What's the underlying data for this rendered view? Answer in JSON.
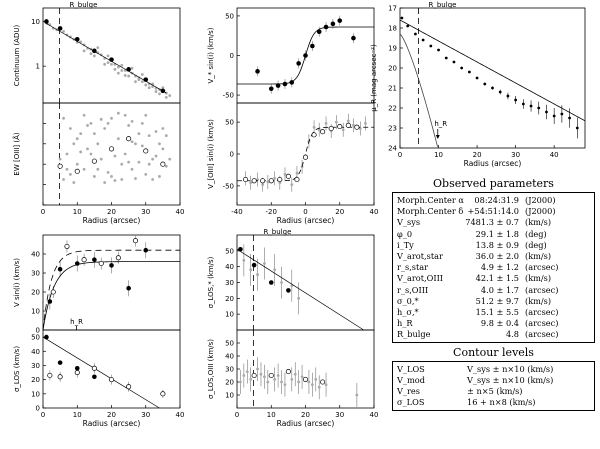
{
  "chart_data": [
    {
      "type": "scatter",
      "ylabel": "Continuum (ADU)",
      "xlim": [
        0,
        40
      ],
      "ylim": [
        0.15,
        20
      ],
      "ylog": true,
      "yticks": [
        1,
        10
      ],
      "annotation": "R_bulge",
      "rbulge": 4.8,
      "points_black": [
        [
          1,
          10
        ],
        [
          5,
          7
        ],
        [
          10,
          4
        ],
        [
          15,
          2.2
        ],
        [
          20,
          1.4
        ],
        [
          25,
          0.85
        ],
        [
          30,
          0.5
        ],
        [
          35,
          0.28
        ]
      ],
      "points_gray": [
        [
          1.2,
          9
        ],
        [
          2,
          8.5
        ],
        [
          3,
          7
        ],
        [
          4,
          6.5
        ],
        [
          6,
          6
        ],
        [
          7,
          5
        ],
        [
          8,
          4.5
        ],
        [
          9,
          4
        ],
        [
          11,
          3.5
        ],
        [
          12,
          3
        ],
        [
          13,
          2.5
        ],
        [
          14,
          2.4
        ],
        [
          16,
          2
        ],
        [
          17,
          1.8
        ],
        [
          18,
          1.5
        ],
        [
          19,
          1.2
        ],
        [
          21,
          1.1
        ],
        [
          22,
          0.95
        ],
        [
          23,
          0.8
        ],
        [
          24,
          0.8
        ],
        [
          26,
          0.7
        ],
        [
          27,
          0.6
        ],
        [
          28,
          0.55
        ],
        [
          29,
          0.45
        ],
        [
          31,
          0.4
        ],
        [
          32,
          0.35
        ],
        [
          33,
          0.32
        ],
        [
          34,
          0.3
        ],
        [
          36,
          0.25
        ],
        [
          37,
          0.22
        ],
        [
          12,
          2.2
        ],
        [
          15,
          1.7
        ],
        [
          18,
          1.1
        ],
        [
          20,
          1.1
        ],
        [
          22,
          0.7
        ],
        [
          25,
          0.6
        ],
        [
          27,
          0.45
        ],
        [
          30,
          0.38
        ],
        [
          33,
          0.27
        ],
        [
          16,
          2.6
        ],
        [
          19,
          1.7
        ],
        [
          23,
          1.05
        ],
        [
          26,
          0.9
        ],
        [
          29,
          0.65
        ],
        [
          32,
          0.4
        ],
        [
          35,
          0.33
        ],
        [
          10,
          3.4
        ],
        [
          14,
          1.9
        ],
        [
          21,
          0.85
        ],
        [
          24,
          0.62
        ],
        [
          28,
          0.5
        ],
        [
          31,
          0.33
        ],
        [
          34,
          0.24
        ],
        [
          36,
          0.2
        ]
      ]
    },
    {
      "type": "scatter",
      "xlabel": "Radius (arcsec)",
      "ylabel": "EW [OIII] (Å)",
      "xlim": [
        0,
        40
      ],
      "ylim": [
        0,
        10
      ],
      "xticks": [
        0,
        10,
        20,
        30,
        40
      ],
      "rbulge": 4.8,
      "points_open": [
        [
          5,
          3.8
        ],
        [
          10,
          3.3
        ],
        [
          15,
          4.3
        ],
        [
          20,
          5.5
        ],
        [
          25,
          6.5
        ],
        [
          30,
          5.3
        ],
        [
          35,
          4
        ]
      ],
      "points_gray": [
        [
          5,
          4.5
        ],
        [
          6,
          2.5
        ],
        [
          7,
          5
        ],
        [
          8,
          3
        ],
        [
          9,
          6
        ],
        [
          10,
          4
        ],
        [
          11,
          7
        ],
        [
          12,
          3.5
        ],
        [
          13,
          5.5
        ],
        [
          14,
          8
        ],
        [
          15,
          2.8
        ],
        [
          16,
          6
        ],
        [
          17,
          4.5
        ],
        [
          18,
          7.5
        ],
        [
          19,
          3.2
        ],
        [
          20,
          8.5
        ],
        [
          21,
          4.8
        ],
        [
          22,
          6.5
        ],
        [
          23,
          2.5
        ],
        [
          24,
          5
        ],
        [
          25,
          7.8
        ],
        [
          26,
          3.5
        ],
        [
          27,
          6
        ],
        [
          28,
          4.2
        ],
        [
          29,
          8
        ],
        [
          30,
          3
        ],
        [
          31,
          6.8
        ],
        [
          32,
          4.5
        ],
        [
          33,
          7.2
        ],
        [
          34,
          2.8
        ],
        [
          35,
          5.5
        ],
        [
          36,
          3.8
        ],
        [
          37,
          4.5
        ],
        [
          8,
          7.5
        ],
        [
          12,
          8.8
        ],
        [
          16,
          3.5
        ],
        [
          20,
          2.8
        ],
        [
          24,
          8.8
        ],
        [
          28,
          7
        ],
        [
          32,
          2.5
        ],
        [
          6,
          8.5
        ],
        [
          10,
          6.5
        ],
        [
          14,
          5
        ],
        [
          18,
          2.2
        ],
        [
          22,
          9
        ],
        [
          26,
          8.2
        ],
        [
          30,
          8.8
        ],
        [
          34,
          6
        ],
        [
          7,
          3.5
        ],
        [
          11,
          5.2
        ],
        [
          15,
          7
        ],
        [
          19,
          8
        ],
        [
          23,
          4
        ],
        [
          27,
          2.6
        ],
        [
          31,
          4
        ],
        [
          35,
          7.5
        ],
        [
          9,
          2.2
        ],
        [
          13,
          7.8
        ],
        [
          17,
          8.4
        ],
        [
          21,
          2.4
        ],
        [
          25,
          4.2
        ],
        [
          29,
          5.8
        ],
        [
          33,
          4.8
        ],
        [
          36,
          6.8
        ],
        [
          26,
          6.2
        ]
      ]
    },
    {
      "type": "line",
      "ylabel": "V_* sin(i) (km/s)",
      "xlim": [
        -40,
        40
      ],
      "ylim": [
        -60,
        60
      ],
      "yticks": [
        -50,
        0,
        50
      ],
      "points": [
        [
          -28,
          -20
        ],
        [
          -20,
          -42
        ],
        [
          -16,
          -38
        ],
        [
          -12,
          -36
        ],
        [
          -8,
          -34
        ],
        [
          -4,
          -10
        ],
        [
          0,
          0
        ],
        [
          4,
          12
        ],
        [
          8,
          30
        ],
        [
          12,
          36
        ],
        [
          16,
          40
        ],
        [
          20,
          44
        ],
        [
          28,
          22
        ]
      ]
    },
    {
      "type": "line",
      "xlabel": "Radius (arcsec)",
      "ylabel": "V_[OIII] sin(i) (km/s)",
      "xlim": [
        -40,
        40
      ],
      "ylim": [
        -80,
        80
      ],
      "xticks": [
        -40,
        -20,
        0,
        20,
        40
      ],
      "yticks": [
        -50,
        0,
        50
      ],
      "points_open": [
        [
          -35,
          -40
        ],
        [
          -30,
          -42
        ],
        [
          -25,
          -42
        ],
        [
          -20,
          -42
        ],
        [
          -15,
          -40
        ],
        [
          -10,
          -35
        ],
        [
          -5,
          -40
        ],
        [
          0,
          -5
        ],
        [
          5,
          30
        ],
        [
          10,
          35
        ],
        [
          15,
          40
        ],
        [
          20,
          43
        ],
        [
          25,
          45
        ],
        [
          30,
          42
        ]
      ],
      "points_gray": [
        [
          -35,
          -38
        ],
        [
          -32,
          -45
        ],
        [
          -28,
          -40
        ],
        [
          -25,
          -48
        ],
        [
          -22,
          -44
        ],
        [
          -18,
          -38
        ],
        [
          -15,
          -45
        ],
        [
          -12,
          -32
        ],
        [
          -8,
          -48
        ],
        [
          -5,
          -30
        ],
        [
          -2,
          -20
        ],
        [
          2,
          20
        ],
        [
          5,
          42
        ],
        [
          8,
          38
        ],
        [
          12,
          48
        ],
        [
          15,
          36
        ],
        [
          18,
          50
        ],
        [
          22,
          38
        ],
        [
          25,
          52
        ],
        [
          28,
          45
        ],
        [
          32,
          40
        ],
        [
          35,
          48
        ]
      ]
    },
    {
      "type": "line",
      "ylabel": "V sin(i) (km/s)",
      "xlim": [
        0,
        40
      ],
      "ylim": [
        0,
        50
      ],
      "yticks": [
        0,
        10,
        20,
        30,
        40
      ],
      "annotation": "h_R",
      "hR": 9.8,
      "points_black": [
        [
          2,
          15
        ],
        [
          5,
          32
        ],
        [
          10,
          35
        ],
        [
          15,
          37
        ],
        [
          20,
          34
        ],
        [
          25,
          22
        ],
        [
          30,
          42
        ]
      ],
      "points_open": [
        [
          3,
          20
        ],
        [
          7,
          44
        ],
        [
          12,
          37
        ],
        [
          17,
          35
        ],
        [
          22,
          38
        ],
        [
          27,
          47
        ]
      ]
    },
    {
      "type": "line",
      "xlabel": "Radius (arcsec)",
      "ylabel": "σ_LOS (km/s)",
      "xlim": [
        0,
        40
      ],
      "ylim": [
        0,
        55
      ],
      "xticks": [
        0,
        10,
        20,
        30,
        40
      ],
      "yticks": [
        0,
        10,
        20,
        30,
        40,
        50
      ],
      "points_black": [
        [
          1,
          50
        ],
        [
          5,
          32
        ],
        [
          10,
          28
        ],
        [
          15,
          22
        ]
      ],
      "points_open": [
        [
          2,
          23
        ],
        [
          5,
          22
        ],
        [
          10,
          25
        ],
        [
          15,
          28
        ],
        [
          20,
          20
        ],
        [
          25,
          15
        ]
      ],
      "points_other": [
        [
          35,
          10
        ]
      ]
    },
    {
      "type": "line",
      "ylabel": "σ_LOS,* (km/s)",
      "xlim": [
        0,
        40
      ],
      "ylim": [
        0,
        60
      ],
      "yticks": [
        10,
        20,
        30,
        40,
        50
      ],
      "annotation": "R_bulge",
      "rbulge": 4.8,
      "points_black": [
        [
          1,
          51
        ],
        [
          5,
          41
        ],
        [
          10,
          30
        ],
        [
          15,
          25
        ]
      ],
      "points_gray": [
        [
          2,
          44
        ],
        [
          4,
          38
        ],
        [
          6,
          35
        ],
        [
          8,
          42
        ],
        [
          11,
          38
        ],
        [
          13,
          30
        ],
        [
          16,
          28
        ],
        [
          18,
          20
        ]
      ]
    },
    {
      "type": "scatter",
      "xlabel": "Radius (arcsec)",
      "ylabel": "σ_LOS,OIII (km/s)",
      "xlim": [
        0,
        40
      ],
      "ylim": [
        0,
        60
      ],
      "xticks": [
        0,
        10,
        20,
        30,
        40
      ],
      "yticks": [
        10,
        20,
        30,
        40,
        50
      ],
      "rbulge": 4.8,
      "points_open": [
        [
          5,
          25
        ],
        [
          10,
          25
        ],
        [
          15,
          28
        ],
        [
          20,
          22
        ],
        [
          25,
          20
        ]
      ],
      "points_gray": [
        [
          1,
          20
        ],
        [
          2,
          25
        ],
        [
          3,
          28
        ],
        [
          4,
          22
        ],
        [
          6,
          30
        ],
        [
          7,
          26
        ],
        [
          8,
          24
        ],
        [
          9,
          20
        ],
        [
          11,
          22
        ],
        [
          12,
          25
        ],
        [
          13,
          20
        ],
        [
          14,
          18
        ],
        [
          16,
          22
        ],
        [
          17,
          26
        ],
        [
          18,
          20
        ],
        [
          19,
          24
        ],
        [
          21,
          20
        ],
        [
          22,
          18
        ],
        [
          23,
          22
        ],
        [
          24,
          16
        ],
        [
          26,
          18
        ],
        [
          35,
          10
        ]
      ]
    },
    {
      "type": "line",
      "xlabel": "Radius (arcsec)",
      "ylabel": "μ_R (mag arcsec⁻²)",
      "xlim": [
        0,
        48
      ],
      "ylim": [
        24,
        17
      ],
      "yticks": [
        17,
        18,
        19,
        20,
        21,
        22,
        23,
        24
      ],
      "xticks": [
        0,
        10,
        20,
        30,
        40
      ],
      "annotation1": "R_bulge",
      "annotation2": "h_R",
      "rbulge": 4.8,
      "hR": 9.8,
      "points": [
        [
          0.5,
          17.5
        ],
        [
          2,
          17.9
        ],
        [
          4,
          18.3
        ],
        [
          6,
          18.6
        ],
        [
          8,
          18.9
        ],
        [
          10,
          19.1
        ],
        [
          12,
          19.5
        ],
        [
          14,
          19.7
        ],
        [
          16,
          20.0
        ],
        [
          18,
          20.2
        ],
        [
          20,
          20.5
        ],
        [
          22,
          20.8
        ],
        [
          24,
          21.0
        ],
        [
          26,
          21.2
        ],
        [
          28,
          21.4
        ],
        [
          30,
          21.6
        ],
        [
          32,
          21.8
        ],
        [
          34,
          21.9
        ],
        [
          36,
          22.0
        ],
        [
          38,
          22.2
        ],
        [
          40,
          22.4
        ],
        [
          42,
          22.3
        ],
        [
          44,
          22.5
        ],
        [
          46,
          23.0
        ]
      ]
    }
  ],
  "observed": {
    "title": "Observed parameters",
    "rows": [
      {
        "name": "Morph.Center α",
        "value": "08:24:31.9",
        "unit": "(J2000)"
      },
      {
        "name": "Morph.Center δ",
        "value": "+54:51:14.0",
        "unit": "(J2000)"
      },
      {
        "name": "V_sys",
        "value": "7481.3 ± 0.7",
        "unit": "(km/s)"
      },
      {
        "name": "φ_0",
        "value": "29.1 ± 1.8",
        "unit": "(deg)"
      },
      {
        "name": "i_Ty",
        "value": "13.8 ± 0.9",
        "unit": "(deg)"
      },
      {
        "name": "V_arot,star",
        "value": "36.0 ± 2.0",
        "unit": "(km/s)"
      },
      {
        "name": "r_s,star",
        "value": "4.9 ± 1.2",
        "unit": "(arcsec)"
      },
      {
        "name": "V_arot,OIII",
        "value": "42.1 ± 1.5",
        "unit": "(km/s)"
      },
      {
        "name": "r_s,OIII",
        "value": "4.0 ± 1.7",
        "unit": "(arcsec)"
      },
      {
        "name": "σ_0,*",
        "value": "51.2 ± 9.7",
        "unit": "(km/s)"
      },
      {
        "name": "h_σ,*",
        "value": "15.1 ± 5.5",
        "unit": "(arcsec)"
      },
      {
        "name": "h_R",
        "value": "9.8 ± 0.4",
        "unit": "(arcsec)"
      },
      {
        "name": "R_bulge",
        "value": "4.8",
        "unit": "(arcsec)"
      }
    ]
  },
  "contour": {
    "title": "Contour levels",
    "rows": [
      {
        "name": "V_LOS",
        "value": "V_sys ± n×10 (km/s)"
      },
      {
        "name": "V_mod",
        "value": "V_sys ± n×10 (km/s)"
      },
      {
        "name": "V_res",
        "value": "± n×5 (km/s)"
      },
      {
        "name": "σ_LOS",
        "value": "16 + n×8 (km/s)"
      }
    ]
  }
}
